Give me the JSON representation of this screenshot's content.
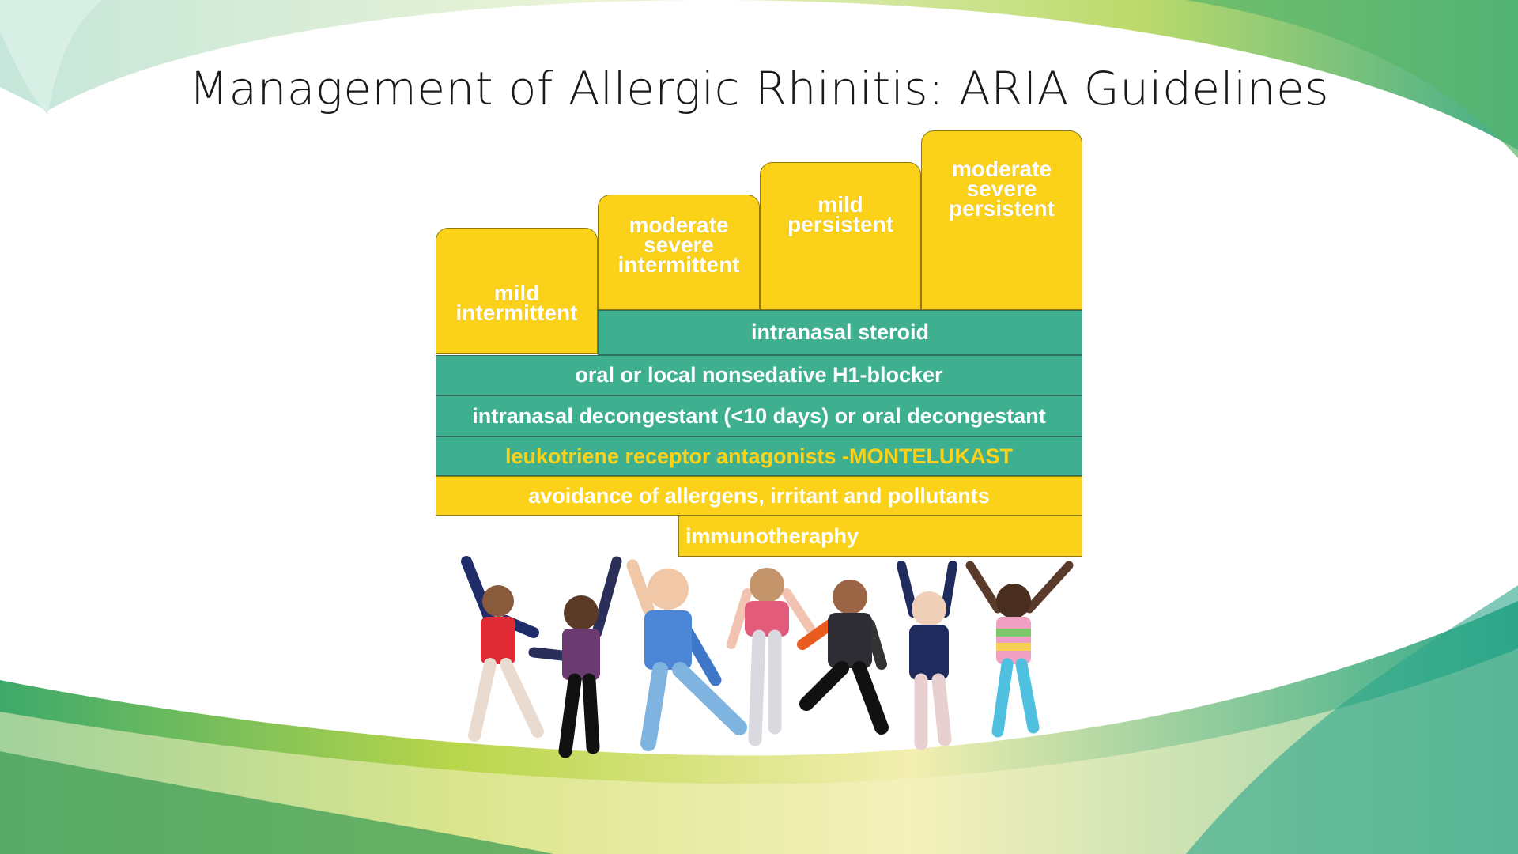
{
  "slide": {
    "title": "Management of Allergic Rhinitis: ARIA Guidelines"
  },
  "severity_steps": [
    {
      "label": "mild\nintermittent"
    },
    {
      "label": "moderate\nsevere\nintermittent"
    },
    {
      "label": "mild\npersistent"
    },
    {
      "label": "moderate\nsevere\npersistent"
    }
  ],
  "treatments": [
    {
      "label": "intranasal steroid"
    },
    {
      "label": "oral or local nonsedative H1-blocker"
    },
    {
      "label": "intranasal decongestant (<10 days) or oral decongestant"
    },
    {
      "label": "leukotriene receptor antagonists -MONTELUKAST"
    },
    {
      "label": "avoidance of allergens, irritant and pollutants"
    },
    {
      "label": "immunotheraphy"
    }
  ],
  "colors": {
    "yellow": "#fcd119",
    "teal": "#3fb08f",
    "green_wave": "#7ab648"
  }
}
